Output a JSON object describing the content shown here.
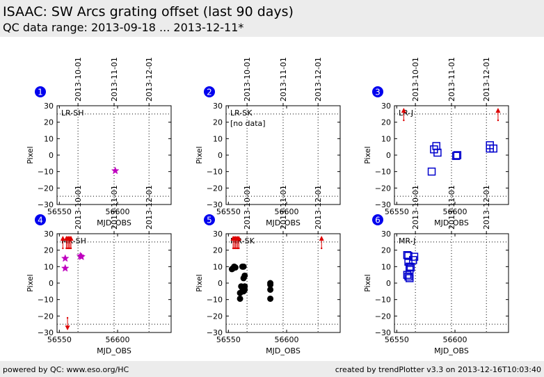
{
  "header": {
    "title": "ISAAC: SW Arcs grating offset (last 90 days)",
    "subtitle": "QC data range: 2013-09-18 ... 2013-12-11*"
  },
  "footer": {
    "left": "powered by QC: www.eso.org/HC",
    "right": "created by trendPlotter v3.3 on 2013-12-16T10:03:40"
  },
  "colors": {
    "star": "#bf00bf",
    "square": "#0000cc",
    "circle": "#000000",
    "arrow": "#dd0000",
    "badge": "#0000ee"
  },
  "chart_data": [
    {
      "type": "scatter",
      "panel": "1",
      "label": "LR-SH",
      "xlabel": "MJD_OBS",
      "ylabel": "Pixel",
      "xlim": [
        56548,
        56646
      ],
      "ylim": [
        -30,
        30
      ],
      "xticks": [
        56550,
        56600
      ],
      "yticks": [
        -30,
        -20,
        -10,
        0,
        10,
        20,
        30
      ],
      "date_ticks": [
        {
          "mjd": 56566,
          "label": "2013-10-01"
        },
        {
          "mjd": 56597,
          "label": "2013-11-01"
        },
        {
          "mjd": 56627,
          "label": "2013-12-01"
        }
      ],
      "hlines": [
        25,
        -25
      ],
      "grid": "dotted",
      "marker": "star",
      "color": "#bf00bf",
      "points": [
        {
          "x": 56598,
          "y": -9.5
        }
      ],
      "arrows_up": [],
      "arrows_down": []
    },
    {
      "type": "scatter",
      "panel": "2",
      "label": "LR-SK",
      "note": "[no data]",
      "xlabel": "MJD_OBS",
      "ylabel": "Pixel",
      "xlim": [
        56548,
        56646
      ],
      "ylim": [
        -30,
        30
      ],
      "xticks": [
        56550,
        56600
      ],
      "yticks": [
        -30,
        -20,
        -10,
        0,
        10,
        20,
        30
      ],
      "date_ticks": [
        {
          "mjd": 56566,
          "label": "2013-10-01"
        },
        {
          "mjd": 56597,
          "label": "2013-11-01"
        },
        {
          "mjd": 56627,
          "label": "2013-12-01"
        }
      ],
      "hlines": [
        25,
        -25
      ],
      "grid": "dotted",
      "marker": "none",
      "color": "#000000",
      "points": [],
      "arrows_up": [],
      "arrows_down": []
    },
    {
      "type": "scatter",
      "panel": "3",
      "label": "LR-J",
      "xlabel": "MJD_OBS",
      "ylabel": "Pixel",
      "xlim": [
        56548,
        56646
      ],
      "ylim": [
        -30,
        30
      ],
      "xticks": [
        56550,
        56600
      ],
      "yticks": [
        -30,
        -20,
        -10,
        0,
        10,
        20,
        30
      ],
      "date_ticks": [
        {
          "mjd": 56566,
          "label": "2013-10-01"
        },
        {
          "mjd": 56597,
          "label": "2013-11-01"
        },
        {
          "mjd": 56627,
          "label": "2013-12-01"
        }
      ],
      "hlines": [
        25,
        -25
      ],
      "grid": "dotted",
      "marker": "square",
      "color": "#0000cc",
      "points": [
        {
          "x": 56580,
          "y": -10
        },
        {
          "x": 56582,
          "y": 3.5
        },
        {
          "x": 56584,
          "y": 5.5
        },
        {
          "x": 56585,
          "y": 1.5
        },
        {
          "x": 56601,
          "y": -0.5
        },
        {
          "x": 56602,
          "y": 0
        },
        {
          "x": 56630,
          "y": 6
        },
        {
          "x": 56630,
          "y": 4
        },
        {
          "x": 56633,
          "y": 4
        }
      ],
      "arrows_up": [
        56556,
        56637
      ],
      "arrows_down": []
    },
    {
      "type": "scatter",
      "panel": "4",
      "label": "MR-SH",
      "xlabel": "MJD_OBS",
      "ylabel": "Pixel",
      "xlim": [
        56548,
        56646
      ],
      "ylim": [
        -30,
        30
      ],
      "xticks": [
        56550,
        56600
      ],
      "yticks": [
        -30,
        -20,
        -10,
        0,
        10,
        20,
        30
      ],
      "date_ticks": [
        {
          "mjd": 56566,
          "label": "2013-10-01"
        },
        {
          "mjd": 56597,
          "label": "2013-11-01"
        },
        {
          "mjd": 56627,
          "label": "2013-12-01"
        }
      ],
      "hlines": [
        25,
        -25
      ],
      "grid": "dotted",
      "marker": "star",
      "color": "#bf00bf",
      "points": [
        {
          "x": 56555,
          "y": 15
        },
        {
          "x": 56555,
          "y": 9
        },
        {
          "x": 56568,
          "y": 16.5
        },
        {
          "x": 56569,
          "y": 16
        }
      ],
      "arrows_up": [
        56553,
        56556,
        56557,
        56558,
        56559,
        56560
      ],
      "arrows_down": [
        56557
      ]
    },
    {
      "type": "scatter",
      "panel": "5",
      "label": "MR-SK",
      "xlabel": "MJD_OBS",
      "ylabel": "Pixel",
      "xlim": [
        56548,
        56646
      ],
      "ylim": [
        -30,
        30
      ],
      "xticks": [
        56550,
        56600
      ],
      "yticks": [
        -30,
        -20,
        -10,
        0,
        10,
        20,
        30
      ],
      "date_ticks": [
        {
          "mjd": 56566,
          "label": "2013-10-01"
        },
        {
          "mjd": 56597,
          "label": "2013-11-01"
        },
        {
          "mjd": 56627,
          "label": "2013-12-01"
        }
      ],
      "hlines": [
        25,
        -25
      ],
      "grid": "dotted",
      "marker": "circle",
      "color": "#000000",
      "points": [
        {
          "x": 56553,
          "y": 8.5
        },
        {
          "x": 56554,
          "y": 9
        },
        {
          "x": 56555,
          "y": 10
        },
        {
          "x": 56556,
          "y": 9.5
        },
        {
          "x": 56560,
          "y": -6
        },
        {
          "x": 56560,
          "y": -9.5
        },
        {
          "x": 56561,
          "y": -2
        },
        {
          "x": 56562,
          "y": -3
        },
        {
          "x": 56562,
          "y": 10
        },
        {
          "x": 56563,
          "y": 10
        },
        {
          "x": 56563,
          "y": 3
        },
        {
          "x": 56564,
          "y": 4.5
        },
        {
          "x": 56563,
          "y": -5
        },
        {
          "x": 56564,
          "y": -4
        },
        {
          "x": 56564,
          "y": -2
        },
        {
          "x": 56586,
          "y": 0
        },
        {
          "x": 56586,
          "y": -1
        },
        {
          "x": 56586,
          "y": -4
        },
        {
          "x": 56586,
          "y": -9.5
        }
      ],
      "arrows_up": [
        56554,
        56555,
        56556,
        56557,
        56558,
        56559,
        56630
      ],
      "arrows_down": []
    },
    {
      "type": "scatter",
      "panel": "6",
      "label": "MR-J",
      "xlabel": "MJD_OBS",
      "ylabel": "Pixel",
      "xlim": [
        56548,
        56646
      ],
      "ylim": [
        -30,
        30
      ],
      "xticks": [
        56550,
        56600
      ],
      "yticks": [
        -30,
        -20,
        -10,
        0,
        10,
        20,
        30
      ],
      "date_ticks": [
        {
          "mjd": 56566,
          "label": "2013-10-01"
        },
        {
          "mjd": 56597,
          "label": "2013-11-01"
        },
        {
          "mjd": 56627,
          "label": "2013-12-01"
        }
      ],
      "hlines": [
        25,
        -25
      ],
      "grid": "dotted",
      "marker": "square",
      "color": "#0000cc",
      "points": [
        {
          "x": 56559,
          "y": 17
        },
        {
          "x": 56560,
          "y": 16.5
        },
        {
          "x": 56560,
          "y": 13
        },
        {
          "x": 56561,
          "y": 10
        },
        {
          "x": 56561,
          "y": 8
        },
        {
          "x": 56562,
          "y": 9.5
        },
        {
          "x": 56564,
          "y": 14
        },
        {
          "x": 56565,
          "y": 16
        },
        {
          "x": 56559,
          "y": 5
        },
        {
          "x": 56560,
          "y": 4
        },
        {
          "x": 56561,
          "y": 3
        }
      ],
      "arrows_up": [],
      "arrows_down": []
    }
  ]
}
